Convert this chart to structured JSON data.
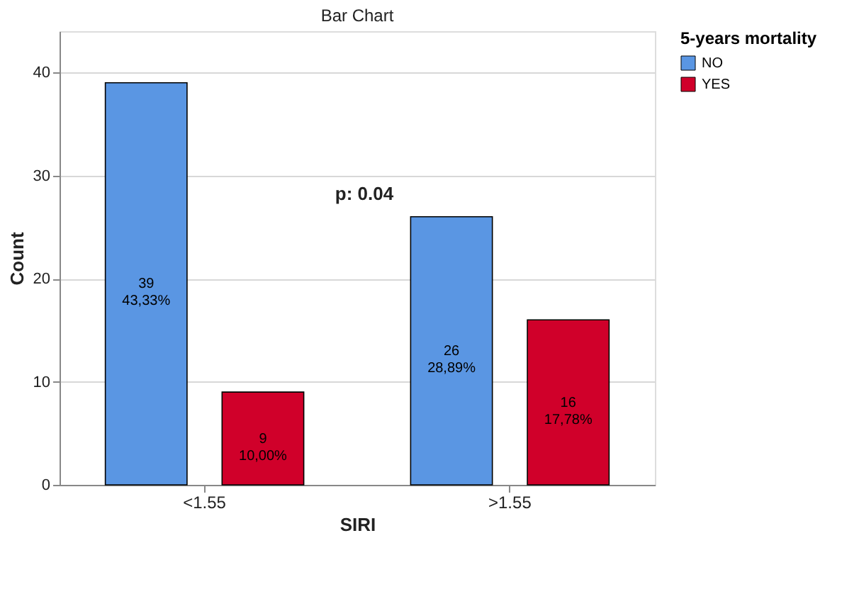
{
  "chart_data": {
    "type": "bar",
    "title": "Bar Chart",
    "xlabel": "SIRI",
    "ylabel": "Count",
    "legend_title": "5-years mortality",
    "categories": [
      "<1.55",
      ">1.55"
    ],
    "series": [
      {
        "name": "NO",
        "color": "#5a96e3",
        "values": [
          39,
          26
        ],
        "value_labels": [
          "39\n43,33%",
          "26\n28,89%"
        ]
      },
      {
        "name": "YES",
        "color": "#d0002a",
        "values": [
          9,
          16
        ],
        "value_labels": [
          "9\n10,00%",
          "16\n17,78%"
        ]
      }
    ],
    "ylim": [
      0,
      44
    ],
    "yticks": [
      0,
      10,
      20,
      30,
      40
    ],
    "grid": "y",
    "legend": "top right",
    "annotations": [
      "p: 0.04"
    ]
  }
}
